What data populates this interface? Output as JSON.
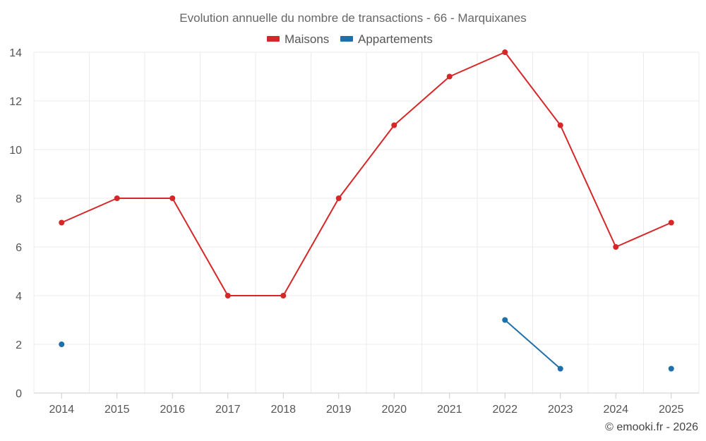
{
  "chart_data": {
    "type": "line",
    "title": "Evolution annuelle du nombre de transactions - 66 - Marquixanes",
    "categories": [
      "2014",
      "2015",
      "2016",
      "2017",
      "2018",
      "2019",
      "2020",
      "2021",
      "2022",
      "2023",
      "2024",
      "2025"
    ],
    "ylim": [
      0,
      14
    ],
    "yticks": [
      0,
      2,
      4,
      6,
      8,
      10,
      12,
      14
    ],
    "grid": true,
    "legend_position": "top-center",
    "series": [
      {
        "name": "Maisons",
        "color": "#d62728",
        "values": [
          7,
          8,
          8,
          4,
          4,
          8,
          11,
          13,
          14,
          11,
          6,
          7
        ]
      },
      {
        "name": "Appartements",
        "color": "#1f6fa8",
        "values": [
          2,
          null,
          null,
          null,
          null,
          null,
          null,
          null,
          3,
          1,
          null,
          1
        ]
      }
    ],
    "credit": "© emooki.fr - 2026"
  }
}
